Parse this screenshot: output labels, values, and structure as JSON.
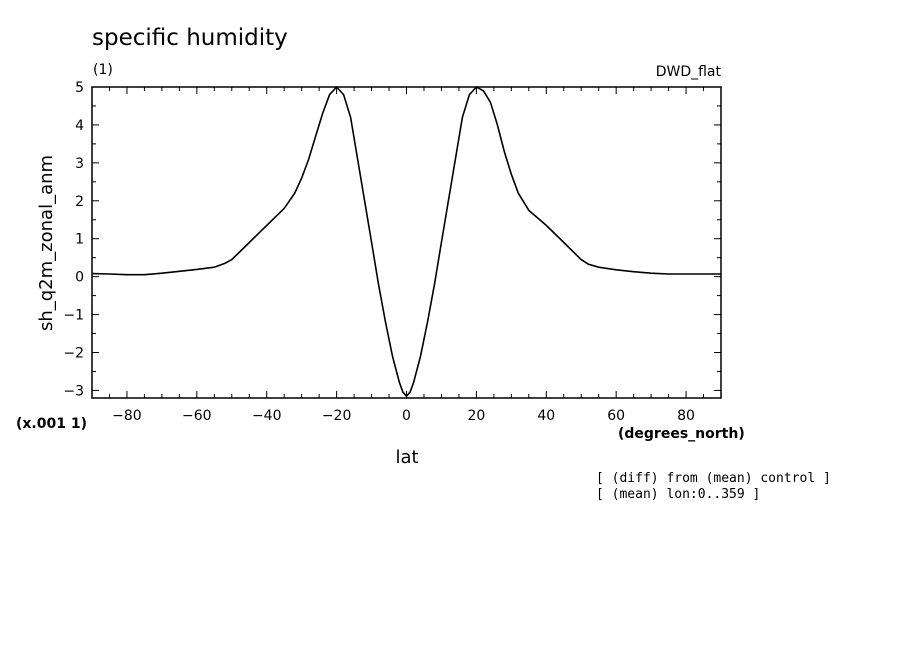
{
  "chart_data": {
    "type": "line",
    "title": "specific humidity",
    "subtitle": "(1)",
    "dataset_label": "DWD_flat",
    "xlabel": "lat",
    "x_units": "(degrees_north)",
    "ylabel": "sh_q2m_zonal_anm",
    "y_scale_note": "(x.001 1)",
    "xlim": [
      -90,
      90
    ],
    "ylim": [
      -3.2,
      5
    ],
    "x_ticks": [
      -80,
      -60,
      -40,
      -20,
      0,
      20,
      40,
      60,
      80
    ],
    "y_ticks": [
      -3,
      -2,
      -1,
      0,
      1,
      2,
      3,
      4,
      5
    ],
    "grid": false,
    "annotations": [
      "[ (diff) from (mean) control ]",
      "[ (mean) lon:0..359 ]"
    ],
    "color": "#000000",
    "series": [
      {
        "x": [
          -90,
          -85,
          -80,
          -75,
          -70,
          -65,
          -60,
          -55,
          -52,
          -50,
          -45,
          -40,
          -35,
          -32,
          -30,
          -28,
          -26,
          -24,
          -22,
          -20,
          -18,
          -16,
          -14,
          -12,
          -10,
          -8,
          -6,
          -4,
          -2,
          -1,
          0,
          1,
          2,
          4,
          6,
          8,
          10,
          12,
          14,
          16,
          18,
          20,
          22,
          24,
          26,
          28,
          30,
          32,
          35,
          40,
          45,
          50,
          52,
          55,
          60,
          65,
          70,
          75,
          80,
          85,
          90
        ],
        "values": [
          0.08,
          0.07,
          0.05,
          0.05,
          0.09,
          0.14,
          0.19,
          0.25,
          0.35,
          0.45,
          0.9,
          1.35,
          1.8,
          2.2,
          2.6,
          3.1,
          3.7,
          4.3,
          4.8,
          5.0,
          4.8,
          4.2,
          3.1,
          2.0,
          0.9,
          -0.2,
          -1.2,
          -2.1,
          -2.8,
          -3.05,
          -3.15,
          -3.05,
          -2.8,
          -2.1,
          -1.2,
          -0.2,
          0.9,
          2.0,
          3.1,
          4.2,
          4.8,
          5.0,
          4.9,
          4.6,
          4.0,
          3.3,
          2.7,
          2.2,
          1.75,
          1.35,
          0.9,
          0.45,
          0.33,
          0.25,
          0.18,
          0.13,
          0.09,
          0.07,
          0.07,
          0.07,
          0.07
        ]
      }
    ]
  }
}
